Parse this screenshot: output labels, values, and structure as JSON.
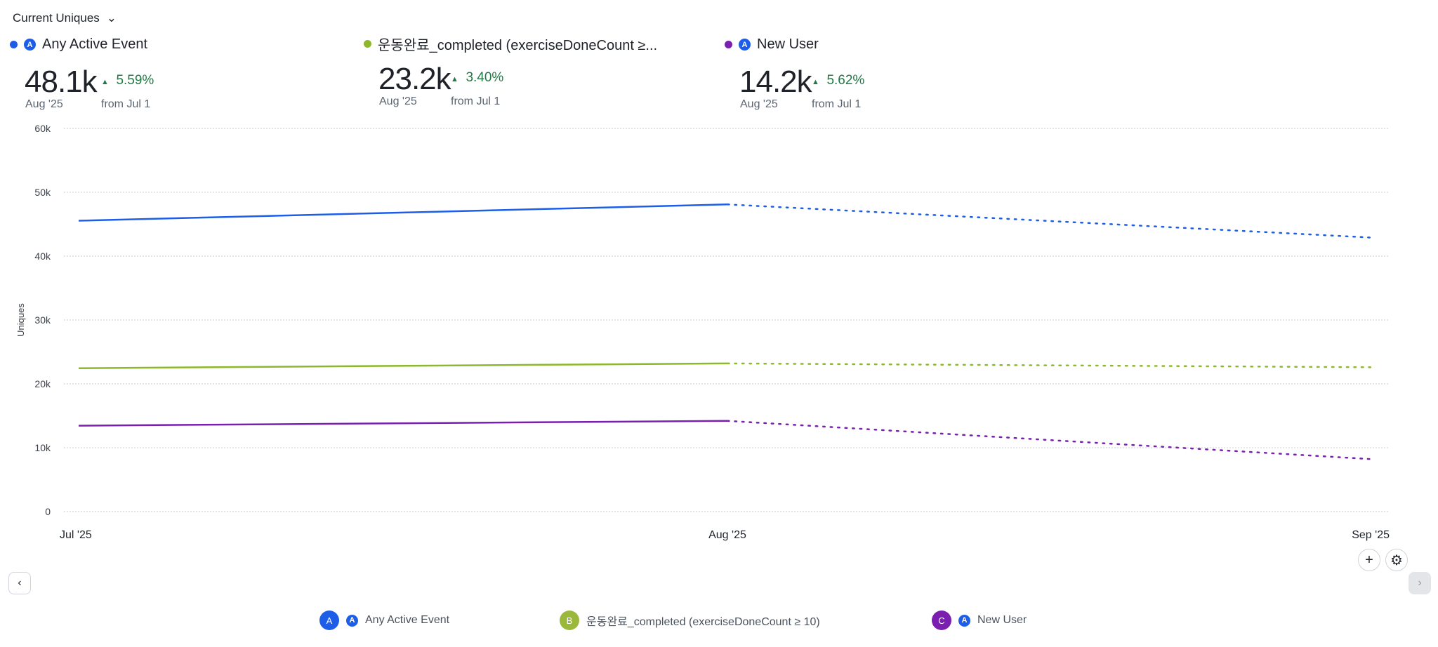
{
  "header": {
    "metric_selector": "Current Uniques"
  },
  "cards": [
    {
      "label": "Any Active Event",
      "value": "48.1k",
      "period": "Aug '25",
      "change": "5.59%",
      "from": "from Jul 1",
      "color": "#1d5ee8"
    },
    {
      "label": "운동완료_completed (exerciseDoneCount ≥...",
      "value": "23.2k",
      "period": "Aug '25",
      "change": "3.40%",
      "from": "from Jul 1",
      "color": "#8cb82b"
    },
    {
      "label": "New User",
      "value": "14.2k",
      "period": "Aug '25",
      "change": "5.62%",
      "from": "from Jul 1",
      "color": "#7a1fb0"
    }
  ],
  "legend": [
    {
      "letter": "A",
      "label": "Any Active Event",
      "color": "#1d5ee8"
    },
    {
      "letter": "B",
      "label": "운동완료_completed (exerciseDoneCount ≥ 10)",
      "color": "#9ab83a"
    },
    {
      "letter": "C",
      "label": "New User",
      "color": "#7a1fb0"
    }
  ],
  "chart_data": {
    "type": "line",
    "ylabel": "Uniques",
    "ylim": [
      0,
      60000
    ],
    "yticks": [
      "0",
      "10k",
      "20k",
      "30k",
      "40k",
      "50k",
      "60k"
    ],
    "categories": [
      "Jul '25",
      "Aug '25",
      "Sep '25"
    ],
    "grid": true,
    "note_dotted": "last segment dotted (incomplete period)",
    "series": [
      {
        "name": "Any Active Event",
        "color": "#1d5ee8",
        "values": [
          45550,
          48100,
          42900
        ]
      },
      {
        "name": "운동완료_completed (exerciseDoneCount ≥ 10)",
        "color": "#8cb82b",
        "values": [
          22450,
          23200,
          22600
        ]
      },
      {
        "name": "New User",
        "color": "#7a1fb0",
        "values": [
          13450,
          14200,
          8200
        ]
      }
    ]
  }
}
